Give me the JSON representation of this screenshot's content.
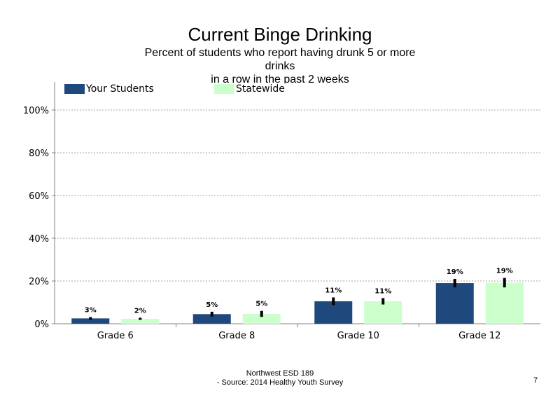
{
  "footer": {
    "line1": "Northwest ESD  189",
    "line2": "- Source: 2014 Healthy  Youth Survey"
  },
  "page_number": "7",
  "chart_data": {
    "type": "bar",
    "title": "Current Binge Drinking",
    "subtitle_lines": [
      "Percent of students  who report having drunk 5 or more",
      "drinks",
      "in a row in the past 2 weeks"
    ],
    "categories": [
      "Grade 6",
      "Grade 8",
      "Grade 10",
      "Grade 12"
    ],
    "series": [
      {
        "name": "Your Students",
        "color": "#1f497d",
        "values": [
          2.5,
          4.5,
          10.5,
          19
        ],
        "labels": [
          "3%",
          "5%",
          "11%",
          "19%"
        ],
        "error": [
          0.6,
          1.1,
          1.8,
          2.0
        ]
      },
      {
        "name": "Statewide",
        "color": "#ccffcc",
        "values": [
          2.3,
          4.6,
          10.5,
          19.2
        ],
        "labels": [
          "2%",
          "5%",
          "11%",
          "19%"
        ],
        "error": [
          0.5,
          1.4,
          1.5,
          2.2
        ]
      }
    ],
    "ylim": [
      0,
      112
    ],
    "yticks": [
      0,
      20,
      40,
      60,
      80,
      100
    ],
    "ytick_labels": [
      "0%",
      "20%",
      "40%",
      "60%",
      "80%",
      "100%"
    ],
    "grid": "dotted horizontal",
    "legend_position": "top"
  }
}
